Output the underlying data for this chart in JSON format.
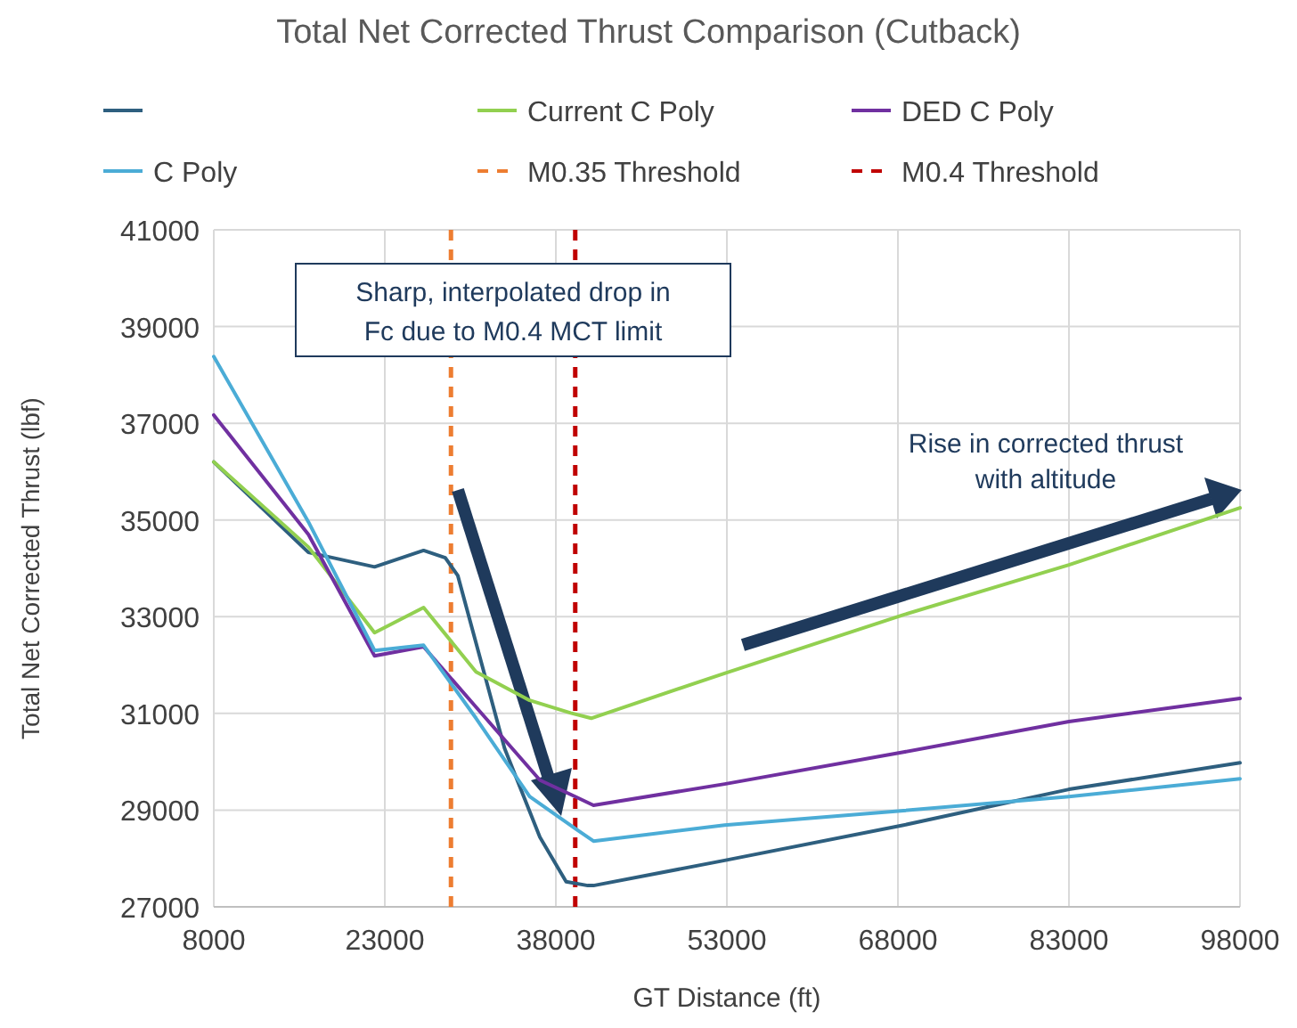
{
  "chart_data": {
    "type": "line",
    "title": "Total Net Corrected Thrust Comparison (Cutback)",
    "xlabel": "GT Distance (ft)",
    "ylabel": "Total Net Corrected Thrust (lbf)",
    "xlim": [
      8000,
      98000
    ],
    "xticks": [
      8000,
      23000,
      38000,
      53000,
      68000,
      83000,
      98000
    ],
    "ylim": [
      27000,
      41000
    ],
    "yticks": [
      27000,
      29000,
      31000,
      33000,
      35000,
      37000,
      39000,
      41000
    ],
    "grid": true,
    "legend": "top",
    "line_style": "solid",
    "marker": "none",
    "series": [
      {
        "color": "#2e5f7f",
        "x": [
          8000,
          16300,
          22100,
          26400,
          28300,
          29400,
          33500,
          36600,
          38900,
          40800,
          41300,
          52800,
          68500,
          83000,
          98000
        ],
        "values": [
          36200,
          34330,
          34030,
          34370,
          34220,
          33850,
          30280,
          28440,
          27520,
          27440,
          27440,
          27960,
          28690,
          29430,
          29980
        ]
      },
      {
        "name": "Current C Poly",
        "color": "#92d050",
        "x": [
          8000,
          16300,
          22100,
          26400,
          31000,
          35700,
          39300,
          41100,
          52800,
          68500,
          83000,
          98000
        ],
        "values": [
          36200,
          34440,
          32670,
          33190,
          31860,
          31270,
          31010,
          30900,
          31830,
          33040,
          34070,
          35250
        ]
      },
      {
        "name": "DED C Poly",
        "color": "#7030a0",
        "x": [
          8000,
          16300,
          22100,
          26400,
          31000,
          36600,
          39700,
          41300,
          52800,
          68500,
          83000,
          98000
        ],
        "values": [
          37170,
          34700,
          32190,
          32380,
          31130,
          29620,
          29280,
          29100,
          29540,
          30200,
          30830,
          31310
        ]
      },
      {
        "name": "C Poly",
        "color": "#4bacd6",
        "x": [
          8000,
          16300,
          22100,
          26400,
          31000,
          35700,
          39700,
          41300,
          52800,
          68500,
          83000,
          98000
        ],
        "values": [
          38380,
          34960,
          32300,
          32410,
          30900,
          29280,
          28620,
          28360,
          28690,
          28990,
          29280,
          29650
        ]
      }
    ],
    "ref_lines": [
      {
        "axis": "x",
        "value": 28800,
        "label": "M0.35 Threshold",
        "color": "#ed7d31",
        "line_style": "dashed"
      },
      {
        "axis": "x",
        "value": 39700,
        "label": "M0.4 Threshold",
        "color": "#c00000",
        "line_style": "dashed"
      }
    ],
    "annotations": [
      "Sharp, interpolated drop in Fc due to M0.4 MCT limit",
      "Rise in corrected thrust with altitude"
    ]
  }
}
